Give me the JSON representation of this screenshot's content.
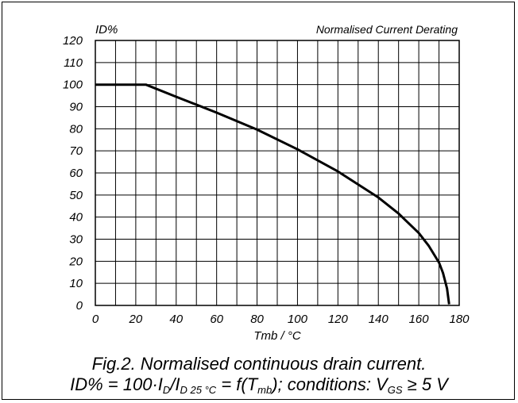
{
  "chart_data": {
    "type": "line",
    "title": "Normalised Current Derating",
    "ylabel": "ID%",
    "xlabel": "Tmb / °C",
    "xlim": [
      0,
      180
    ],
    "ylim": [
      0,
      120
    ],
    "x_ticks": [
      0,
      20,
      40,
      60,
      80,
      100,
      120,
      140,
      160,
      180
    ],
    "y_ticks": [
      0,
      10,
      20,
      30,
      40,
      50,
      60,
      70,
      80,
      90,
      100,
      110,
      120
    ],
    "x_minor_step": 10,
    "grid": true,
    "series": [
      {
        "x": [
          0,
          25,
          40,
          60,
          80,
          100,
          120,
          140,
          150,
          160,
          165,
          170,
          172,
          174,
          175
        ],
        "y": [
          100,
          100,
          94.5,
          87.3,
          79.6,
          70.7,
          60.7,
          48.9,
          41.6,
          32.8,
          26.9,
          19.4,
          14.7,
          7.6,
          0.5
        ]
      }
    ]
  },
  "caption": {
    "line1": "Fig.2.   Normalised continuous drain current.",
    "line2_prefix": "ID% = 100·I",
    "line2_sub_d": "D",
    "line2_mid": "/I",
    "line2_sub_d25": "D 25 °C",
    "line2_eq": " = f(T",
    "line2_sub_mb": "mb",
    "line2_cond": "); conditions: V",
    "line2_sub_gs": "GS",
    "line2_suffix": " ≥ 5 V"
  }
}
